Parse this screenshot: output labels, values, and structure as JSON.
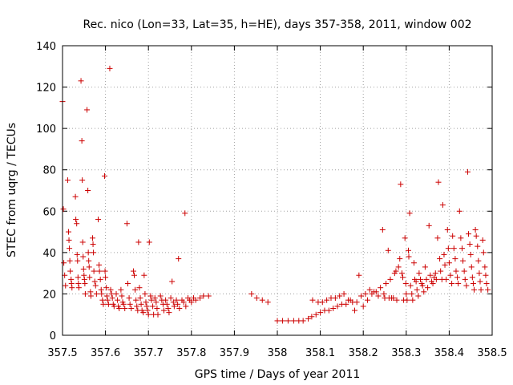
{
  "chart_data": {
    "type": "scatter",
    "title": "Rec. nico (Lon=33, Lat=35, h=HE), days 357-358, 2011, window 002",
    "xlabel": "GPS time / Days of year 2011",
    "ylabel": "STEC from uqrg / TECUs",
    "xlim": [
      357.5,
      358.5
    ],
    "ylim": [
      0,
      140
    ],
    "xticks": [
      357.5,
      357.6,
      357.7,
      357.8,
      357.9,
      358,
      358.1,
      358.2,
      358.3,
      358.4,
      358.5
    ],
    "xtick_labels": [
      "357.5",
      "357.6",
      "357.7",
      "357.8",
      "357.9",
      "358",
      "358.1",
      "358.2",
      "358.3",
      "358.4",
      "358.5"
    ],
    "yticks": [
      0,
      20,
      40,
      60,
      80,
      100,
      120,
      140
    ],
    "ytick_labels": [
      "0",
      "20",
      "40",
      "60",
      "80",
      "100",
      "120",
      "140"
    ],
    "grid": true,
    "marker": "plus",
    "color": "#cc0000",
    "series": [
      {
        "points": [
          [
            357.5,
            113
          ],
          [
            357.502,
            61
          ],
          [
            357.503,
            35
          ],
          [
            357.505,
            29
          ],
          [
            357.507,
            24
          ],
          [
            357.512,
            75
          ],
          [
            357.514,
            50
          ],
          [
            357.515,
            46
          ],
          [
            357.516,
            42
          ],
          [
            357.517,
            36
          ],
          [
            357.518,
            31
          ],
          [
            357.52,
            27
          ],
          [
            357.521,
            25
          ],
          [
            357.522,
            23
          ],
          [
            357.53,
            67
          ],
          [
            357.531,
            56
          ],
          [
            357.533,
            54
          ],
          [
            357.534,
            39
          ],
          [
            357.535,
            36
          ],
          [
            357.536,
            28
          ],
          [
            357.537,
            25
          ],
          [
            357.538,
            23
          ],
          [
            357.543,
            123
          ],
          [
            357.545,
            94
          ],
          [
            357.546,
            75
          ],
          [
            357.547,
            45
          ],
          [
            357.548,
            38
          ],
          [
            357.549,
            32
          ],
          [
            357.55,
            29
          ],
          [
            357.551,
            27
          ],
          [
            357.552,
            25
          ],
          [
            357.553,
            20
          ],
          [
            357.557,
            109
          ],
          [
            357.559,
            70
          ],
          [
            357.56,
            40
          ],
          [
            357.561,
            36
          ],
          [
            357.562,
            33
          ],
          [
            357.563,
            28
          ],
          [
            357.565,
            21
          ],
          [
            357.566,
            19
          ],
          [
            357.57,
            47
          ],
          [
            357.571,
            44
          ],
          [
            357.572,
            40
          ],
          [
            357.573,
            31
          ],
          [
            357.575,
            26
          ],
          [
            357.577,
            24
          ],
          [
            357.579,
            20
          ],
          [
            357.583,
            56
          ],
          [
            357.585,
            34
          ],
          [
            357.586,
            31
          ],
          [
            357.588,
            27
          ],
          [
            357.59,
            22
          ],
          [
            357.591,
            20
          ],
          [
            357.593,
            17
          ],
          [
            357.595,
            15
          ],
          [
            357.598,
            77
          ],
          [
            357.599,
            31
          ],
          [
            357.6,
            28
          ],
          [
            357.602,
            23
          ],
          [
            357.603,
            19
          ],
          [
            357.605,
            17
          ],
          [
            357.607,
            15
          ],
          [
            357.61,
            129
          ],
          [
            357.612,
            22
          ],
          [
            357.614,
            20
          ],
          [
            357.616,
            18
          ],
          [
            357.618,
            15
          ],
          [
            357.62,
            14
          ],
          [
            357.625,
            20
          ],
          [
            357.628,
            17
          ],
          [
            357.63,
            14
          ],
          [
            357.632,
            13
          ],
          [
            357.636,
            22
          ],
          [
            357.638,
            19
          ],
          [
            357.64,
            16
          ],
          [
            357.642,
            15
          ],
          [
            357.645,
            13
          ],
          [
            357.65,
            54
          ],
          [
            357.652,
            25
          ],
          [
            357.655,
            18
          ],
          [
            357.657,
            15
          ],
          [
            357.66,
            13
          ],
          [
            357.665,
            31
          ],
          [
            357.667,
            29
          ],
          [
            357.669,
            22
          ],
          [
            357.671,
            17
          ],
          [
            357.673,
            14
          ],
          [
            357.675,
            12
          ],
          [
            357.677,
            45
          ],
          [
            357.679,
            23
          ],
          [
            357.681,
            18
          ],
          [
            357.683,
            15
          ],
          [
            357.685,
            12
          ],
          [
            357.688,
            11
          ],
          [
            357.69,
            29
          ],
          [
            357.692,
            20
          ],
          [
            357.694,
            16
          ],
          [
            357.696,
            14
          ],
          [
            357.698,
            12
          ],
          [
            357.7,
            10
          ],
          [
            357.702,
            45
          ],
          [
            357.705,
            19
          ],
          [
            357.707,
            17
          ],
          [
            357.71,
            14
          ],
          [
            357.712,
            10
          ],
          [
            357.715,
            18
          ],
          [
            357.718,
            16
          ],
          [
            357.72,
            13
          ],
          [
            357.722,
            10
          ],
          [
            357.728,
            19
          ],
          [
            357.731,
            17
          ],
          [
            357.734,
            15
          ],
          [
            357.736,
            12
          ],
          [
            357.74,
            17
          ],
          [
            357.743,
            15
          ],
          [
            357.746,
            13
          ],
          [
            357.748,
            11
          ],
          [
            357.752,
            18
          ],
          [
            357.755,
            26
          ],
          [
            357.758,
            16
          ],
          [
            357.76,
            14
          ],
          [
            357.765,
            17
          ],
          [
            357.768,
            15
          ],
          [
            357.77,
            37
          ],
          [
            357.772,
            13
          ],
          [
            357.778,
            17
          ],
          [
            357.782,
            16
          ],
          [
            357.785,
            59
          ],
          [
            357.787,
            14
          ],
          [
            357.792,
            18
          ],
          [
            357.796,
            17
          ],
          [
            357.8,
            16
          ],
          [
            357.805,
            18
          ],
          [
            357.81,
            17
          ],
          [
            357.82,
            18
          ],
          [
            357.828,
            19
          ],
          [
            357.84,
            19
          ],
          [
            357.94,
            20
          ],
          [
            357.952,
            18
          ],
          [
            357.965,
            17
          ],
          [
            357.978,
            16
          ],
          [
            358.0,
            7
          ],
          [
            358.012,
            7
          ],
          [
            358.025,
            7
          ],
          [
            358.038,
            7
          ],
          [
            358.05,
            7
          ],
          [
            358.06,
            7
          ],
          [
            358.072,
            8
          ],
          [
            358.08,
            9
          ],
          [
            358.082,
            17
          ],
          [
            358.09,
            10
          ],
          [
            358.095,
            16
          ],
          [
            358.1,
            11
          ],
          [
            358.105,
            16
          ],
          [
            358.11,
            12
          ],
          [
            358.115,
            17
          ],
          [
            358.12,
            12
          ],
          [
            358.125,
            18
          ],
          [
            358.13,
            13
          ],
          [
            358.135,
            18
          ],
          [
            358.14,
            14
          ],
          [
            358.145,
            19
          ],
          [
            358.15,
            15
          ],
          [
            358.155,
            20
          ],
          [
            358.16,
            15
          ],
          [
            358.165,
            17
          ],
          [
            358.17,
            17
          ],
          [
            358.175,
            16
          ],
          [
            358.18,
            12
          ],
          [
            358.185,
            16
          ],
          [
            358.19,
            29
          ],
          [
            358.195,
            19
          ],
          [
            358.2,
            14
          ],
          [
            358.205,
            20
          ],
          [
            358.21,
            17
          ],
          [
            358.215,
            22
          ],
          [
            358.22,
            20
          ],
          [
            358.225,
            21
          ],
          [
            358.23,
            21
          ],
          [
            358.235,
            19
          ],
          [
            358.24,
            23
          ],
          [
            358.245,
            51
          ],
          [
            358.248,
            20
          ],
          [
            358.25,
            18
          ],
          [
            358.253,
            25
          ],
          [
            358.258,
            41
          ],
          [
            358.26,
            18
          ],
          [
            358.263,
            27
          ],
          [
            358.266,
            18
          ],
          [
            358.27,
            18
          ],
          [
            358.273,
            30
          ],
          [
            358.276,
            31
          ],
          [
            358.278,
            17
          ],
          [
            358.282,
            33
          ],
          [
            358.285,
            37
          ],
          [
            358.287,
            73
          ],
          [
            358.29,
            30
          ],
          [
            358.292,
            28
          ],
          [
            358.294,
            17
          ],
          [
            358.297,
            47
          ],
          [
            358.299,
            25
          ],
          [
            358.3,
            20
          ],
          [
            358.302,
            17
          ],
          [
            358.305,
            41
          ],
          [
            358.306,
            38
          ],
          [
            358.308,
            59
          ],
          [
            358.31,
            24
          ],
          [
            358.313,
            20
          ],
          [
            358.315,
            17
          ],
          [
            358.318,
            35
          ],
          [
            358.32,
            27
          ],
          [
            358.323,
            26
          ],
          [
            358.325,
            22
          ],
          [
            358.328,
            19
          ],
          [
            358.33,
            30
          ],
          [
            358.333,
            27
          ],
          [
            358.336,
            25
          ],
          [
            358.338,
            24
          ],
          [
            358.341,
            21
          ],
          [
            358.344,
            33
          ],
          [
            358.347,
            27
          ],
          [
            358.35,
            23
          ],
          [
            358.353,
            53
          ],
          [
            358.356,
            29
          ],
          [
            358.359,
            26
          ],
          [
            358.362,
            25
          ],
          [
            358.365,
            28
          ],
          [
            358.368,
            30
          ],
          [
            358.37,
            27
          ],
          [
            358.373,
            47
          ],
          [
            358.375,
            74
          ],
          [
            358.378,
            37
          ],
          [
            358.38,
            31
          ],
          [
            358.383,
            27
          ],
          [
            358.385,
            63
          ],
          [
            358.388,
            39
          ],
          [
            358.39,
            34
          ],
          [
            358.393,
            27
          ],
          [
            358.396,
            51
          ],
          [
            358.398,
            42
          ],
          [
            358.4,
            35
          ],
          [
            358.403,
            29
          ],
          [
            358.406,
            25
          ],
          [
            358.408,
            48
          ],
          [
            358.411,
            42
          ],
          [
            358.414,
            37
          ],
          [
            358.416,
            31
          ],
          [
            358.419,
            28
          ],
          [
            358.421,
            25
          ],
          [
            358.424,
            60
          ],
          [
            358.427,
            47
          ],
          [
            358.43,
            42
          ],
          [
            358.432,
            36
          ],
          [
            358.435,
            31
          ],
          [
            358.437,
            27
          ],
          [
            358.44,
            24
          ],
          [
            358.443,
            79
          ],
          [
            358.445,
            49
          ],
          [
            358.448,
            44
          ],
          [
            358.45,
            39
          ],
          [
            358.452,
            33
          ],
          [
            358.454,
            28
          ],
          [
            358.456,
            25
          ],
          [
            358.458,
            22
          ],
          [
            358.461,
            51
          ],
          [
            358.463,
            48
          ],
          [
            358.466,
            43
          ],
          [
            358.468,
            36
          ],
          [
            358.47,
            30
          ],
          [
            358.472,
            26
          ],
          [
            358.474,
            22
          ],
          [
            358.478,
            46
          ],
          [
            358.48,
            40
          ],
          [
            358.483,
            33
          ],
          [
            358.485,
            29
          ],
          [
            358.487,
            25
          ],
          [
            358.49,
            22
          ]
        ]
      }
    ]
  }
}
